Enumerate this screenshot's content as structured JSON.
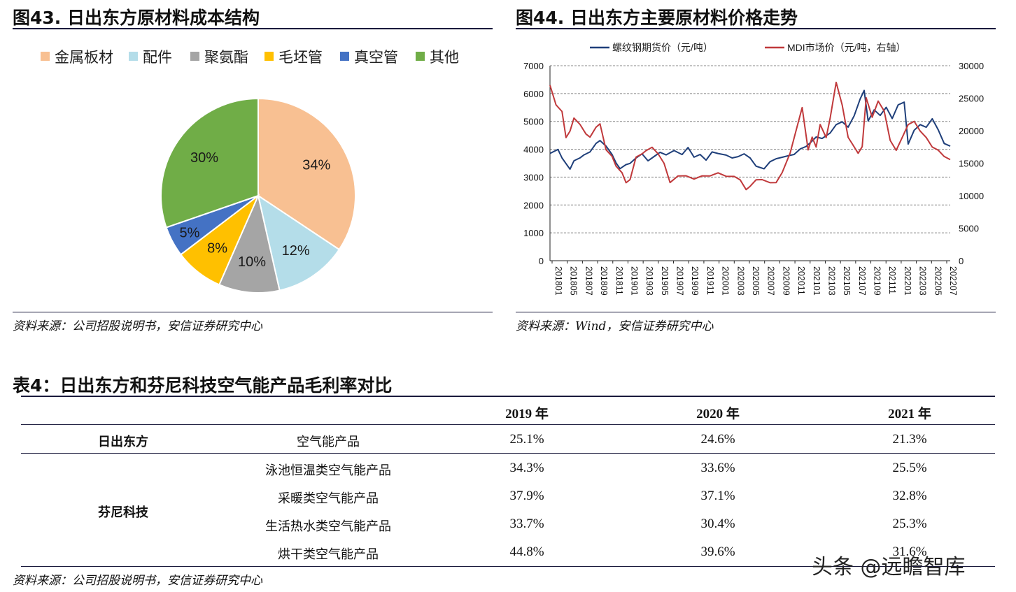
{
  "fig43": {
    "title": "图43. 日出东方原材料成本结构",
    "source": "资料来源：公司招股说明书，安信证券研究中心"
  },
  "fig44": {
    "title": "图44. 日出东方主要原材料价格走势",
    "source": "资料来源：Wind，安信证券研究中心"
  },
  "table4": {
    "title": "表4：日出东方和芬尼科技空气能产品毛利率对比",
    "headers": [
      "2019 年",
      "2020 年",
      "2021 年"
    ],
    "groups": [
      "日出东方",
      "芬尼科技"
    ],
    "rows": [
      {
        "product": "空气能产品",
        "values": [
          "25.1%",
          "24.6%",
          "21.3%"
        ]
      },
      {
        "product": "泳池恒温类空气能产品",
        "values": [
          "34.3%",
          "33.6%",
          "25.5%"
        ]
      },
      {
        "product": "采暖类空气能产品",
        "values": [
          "37.9%",
          "37.1%",
          "32.8%"
        ]
      },
      {
        "product": "生活热水类空气能产品",
        "values": [
          "33.7%",
          "30.4%",
          "25.3%"
        ]
      },
      {
        "product": "烘干类空气能产品",
        "values": [
          "44.8%",
          "39.6%",
          "31.6%"
        ]
      }
    ],
    "source": "资料来源：公司招股说明书，安信证券研究中心"
  },
  "watermark": "头条 @远瞻智库",
  "chart_data": [
    {
      "type": "pie",
      "categories": [
        "金属板材",
        "配件",
        "聚氨酯",
        "毛坯管",
        "真空管",
        "其他"
      ],
      "values": [
        34,
        12,
        10,
        8,
        5,
        30
      ],
      "labels": [
        "34%",
        "12%",
        "10%",
        "8%",
        "5%",
        "30%"
      ],
      "colors": [
        "#f8c092",
        "#b4dde9",
        "#a5a5a5",
        "#ffc000",
        "#4472c4",
        "#70ad47"
      ],
      "legend": "top"
    },
    {
      "type": "line",
      "legend": "top",
      "grid": true,
      "x_ticks": [
        "201801",
        "201805",
        "201807",
        "201809",
        "201811",
        "201901",
        "201903",
        "201905",
        "201907",
        "201909",
        "201911",
        "202001",
        "202003",
        "202005",
        "202007",
        "202009",
        "202011",
        "202101",
        "202103",
        "202105",
        "202107",
        "202109",
        "202111",
        "202201",
        "202203",
        "202205",
        "202207"
      ],
      "y_left": {
        "ticks": [
          "0",
          "1000",
          "2000",
          "3000",
          "4000",
          "5000",
          "6000",
          "7000"
        ],
        "range": [
          0,
          7000
        ]
      },
      "y_right": {
        "ticks": [
          "0",
          "5000",
          "10000",
          "15000",
          "20000",
          "25000",
          "30000"
        ],
        "range": [
          0,
          30000
        ]
      },
      "series": [
        {
          "name": "螺纹钢期货价（元/吨）",
          "axis": "left",
          "color": "#1f3f7a",
          "t": [
            0,
            0.02,
            0.03,
            0.04,
            0.05,
            0.06,
            0.075,
            0.085,
            0.1,
            0.115,
            0.125,
            0.14,
            0.155,
            0.165,
            0.175,
            0.19,
            0.2,
            0.215,
            0.23,
            0.245,
            0.26,
            0.275,
            0.29,
            0.31,
            0.33,
            0.345,
            0.36,
            0.375,
            0.39,
            0.405,
            0.42,
            0.44,
            0.455,
            0.47,
            0.485,
            0.5,
            0.515,
            0.535,
            0.55,
            0.565,
            0.58,
            0.595,
            0.61,
            0.625,
            0.64,
            0.655,
            0.665,
            0.68,
            0.7,
            0.715,
            0.73,
            0.745,
            0.76,
            0.775,
            0.785,
            0.795,
            0.81,
            0.825,
            0.84,
            0.855,
            0.87,
            0.885,
            0.895,
            0.91,
            0.925,
            0.94,
            0.955,
            0.97,
            0.985,
            1.0
          ],
          "v": [
            3850,
            4000,
            3700,
            3500,
            3300,
            3600,
            3700,
            3800,
            3900,
            4200,
            4300,
            4100,
            3800,
            3500,
            3300,
            3450,
            3500,
            3700,
            3850,
            3600,
            3750,
            3900,
            3800,
            3950,
            3800,
            4050,
            3700,
            3800,
            3600,
            3900,
            3850,
            3800,
            3700,
            3750,
            3850,
            3700,
            3400,
            3300,
            3550,
            3650,
            3700,
            3750,
            3800,
            4000,
            4100,
            4300,
            4450,
            4400,
            4600,
            4900,
            5000,
            4800,
            5200,
            5800,
            6100,
            5000,
            5400,
            5200,
            5500,
            5100,
            5600,
            5700,
            4200,
            4700,
            4900,
            4800,
            5100,
            4700,
            4200,
            4100
          ]
        },
        {
          "name": "MDI市场价（元/吨，右轴）",
          "axis": "right",
          "color": "#c0393b",
          "t": [
            0,
            0.015,
            0.03,
            0.04,
            0.05,
            0.06,
            0.075,
            0.09,
            0.1,
            0.115,
            0.125,
            0.14,
            0.155,
            0.165,
            0.18,
            0.19,
            0.2,
            0.215,
            0.23,
            0.24,
            0.255,
            0.27,
            0.285,
            0.3,
            0.32,
            0.34,
            0.36,
            0.38,
            0.4,
            0.42,
            0.44,
            0.46,
            0.475,
            0.49,
            0.5,
            0.515,
            0.53,
            0.55,
            0.565,
            0.58,
            0.6,
            0.615,
            0.63,
            0.645,
            0.655,
            0.665,
            0.675,
            0.69,
            0.7,
            0.715,
            0.73,
            0.745,
            0.755,
            0.77,
            0.78,
            0.79,
            0.805,
            0.82,
            0.835,
            0.85,
            0.865,
            0.88,
            0.895,
            0.91,
            0.925,
            0.94,
            0.955,
            0.97,
            0.985,
            1.0
          ],
          "v": [
            27000,
            24000,
            23000,
            19000,
            20000,
            22000,
            21000,
            19500,
            19000,
            20500,
            21000,
            17000,
            16000,
            14500,
            13500,
            12000,
            12500,
            16000,
            16500,
            17000,
            17500,
            16500,
            15000,
            12000,
            13000,
            13000,
            12500,
            13000,
            13000,
            13500,
            13000,
            13000,
            12500,
            11000,
            11500,
            12500,
            12500,
            12000,
            12000,
            13500,
            16500,
            20000,
            23500,
            17000,
            19000,
            17500,
            21000,
            19000,
            22000,
            27500,
            24000,
            19000,
            18000,
            16500,
            17500,
            25000,
            22000,
            24500,
            23000,
            18500,
            17000,
            19000,
            21000,
            21500,
            20000,
            19000,
            17500,
            17000,
            16000,
            15500
          ]
        }
      ]
    }
  ]
}
